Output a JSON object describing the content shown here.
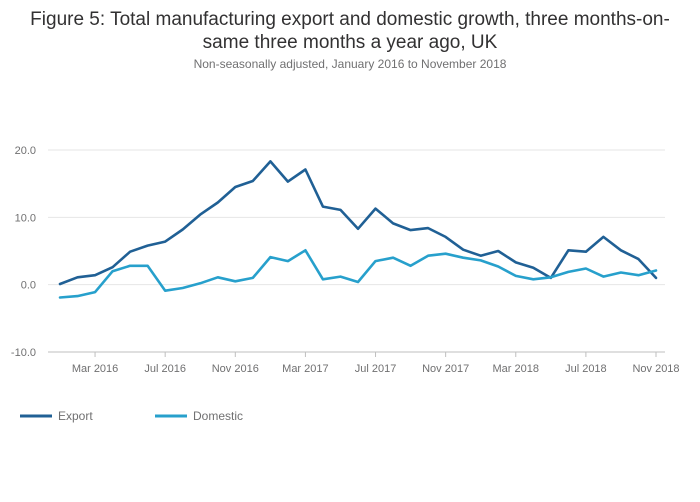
{
  "chart_data": {
    "type": "line",
    "title": "Figure 5: Total manufacturing export and domestic growth, three months-on-same three months a year ago, UK",
    "subtitle": "Non-seasonally adjusted, January 2016 to November 2018",
    "xlabel": "",
    "ylabel": "",
    "ylim": [
      -10,
      20
    ],
    "yticks": [
      "20.0",
      "10.0",
      "0.0",
      "-10.0"
    ],
    "ytick_values": [
      20,
      10,
      0,
      -10
    ],
    "xticks": [
      "Mar 2016",
      "Jul 2016",
      "Nov 2016",
      "Mar 2017",
      "Jul 2017",
      "Nov 2017",
      "Mar 2018",
      "Jul 2018",
      "Nov 2018"
    ],
    "xtick_index": [
      2,
      6,
      10,
      14,
      18,
      22,
      26,
      30,
      34
    ],
    "x": [
      "Jan 2016",
      "Feb 2016",
      "Mar 2016",
      "Apr 2016",
      "May 2016",
      "Jun 2016",
      "Jul 2016",
      "Aug 2016",
      "Sep 2016",
      "Oct 2016",
      "Nov 2016",
      "Dec 2016",
      "Jan 2017",
      "Feb 2017",
      "Mar 2017",
      "Apr 2017",
      "May 2017",
      "Jun 2017",
      "Jul 2017",
      "Aug 2017",
      "Sep 2017",
      "Oct 2017",
      "Nov 2017",
      "Dec 2017",
      "Jan 2018",
      "Feb 2018",
      "Mar 2018",
      "Apr 2018",
      "May 2018",
      "Jun 2018",
      "Jul 2018",
      "Aug 2018",
      "Sep 2018",
      "Oct 2018",
      "Nov 2018"
    ],
    "grid": true,
    "legend_position": "bottom-left",
    "series": [
      {
        "name": "Export",
        "color": "#206095",
        "values": [
          0.1,
          1.1,
          1.4,
          2.6,
          4.9,
          5.8,
          6.4,
          8.2,
          10.4,
          12.2,
          14.5,
          15.4,
          18.3,
          15.3,
          17.1,
          11.6,
          11.1,
          8.3,
          11.3,
          9.1,
          8.1,
          8.4,
          7.1,
          5.2,
          4.3,
          5.0,
          3.3,
          2.5,
          1.0,
          5.1,
          4.9,
          7.1,
          5.1,
          3.8,
          1.0
        ]
      },
      {
        "name": "Domestic",
        "color": "#27a0cc",
        "values": [
          -1.9,
          -1.7,
          -1.1,
          2.0,
          2.8,
          2.8,
          -0.9,
          -0.5,
          0.2,
          1.1,
          0.5,
          1.0,
          4.1,
          3.5,
          5.1,
          0.8,
          1.2,
          0.4,
          3.5,
          4.0,
          2.8,
          4.3,
          4.6,
          4.0,
          3.6,
          2.7,
          1.3,
          0.8,
          1.1,
          1.9,
          2.4,
          1.2,
          1.8,
          1.4,
          2.1
        ]
      }
    ]
  }
}
